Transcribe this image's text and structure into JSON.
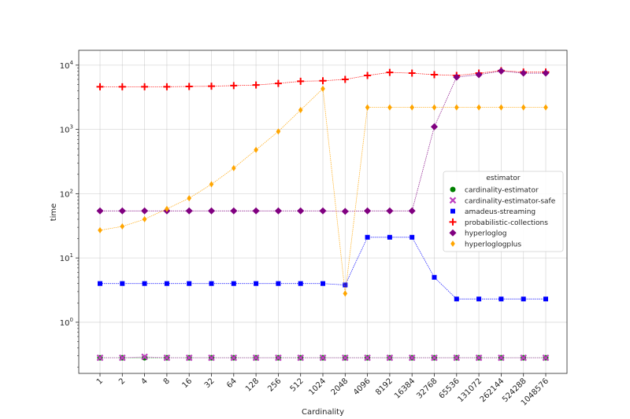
{
  "chart_data": {
    "type": "line",
    "title": "",
    "xlabel": "Cardinality",
    "ylabel": "time",
    "yscale": "log",
    "ylim": [
      0.16,
      17000
    ],
    "categories": [
      "1",
      "2",
      "4",
      "8",
      "16",
      "32",
      "64",
      "128",
      "256",
      "512",
      "1024",
      "2048",
      "4096",
      "8192",
      "16384",
      "32768",
      "65536",
      "131072",
      "262144",
      "524288",
      "1048576"
    ],
    "y_ticks": [
      {
        "value": 1,
        "base": "10",
        "exp": "0"
      },
      {
        "value": 10,
        "base": "10",
        "exp": "1"
      },
      {
        "value": 100,
        "base": "10",
        "exp": "2"
      },
      {
        "value": 1000,
        "base": "10",
        "exp": "3"
      },
      {
        "value": 10000,
        "base": "10",
        "exp": "4"
      }
    ],
    "grid": true,
    "legend": {
      "title": "estimator",
      "position": "right"
    },
    "series": [
      {
        "name": "cardinality-estimator",
        "color": "#008000",
        "marker": "circle",
        "values": [
          0.28,
          0.28,
          0.28,
          0.28,
          0.28,
          0.28,
          0.28,
          0.28,
          0.28,
          0.28,
          0.28,
          0.28,
          0.28,
          0.28,
          0.28,
          0.28,
          0.28,
          0.28,
          0.28,
          0.28,
          0.28
        ]
      },
      {
        "name": "cardinality-estimator-safe",
        "color": "#bf40bf",
        "marker": "x",
        "values": [
          0.28,
          0.28,
          0.29,
          0.28,
          0.28,
          0.28,
          0.28,
          0.28,
          0.28,
          0.28,
          0.28,
          0.28,
          0.28,
          0.28,
          0.28,
          0.28,
          0.28,
          0.28,
          0.28,
          0.28,
          0.28
        ]
      },
      {
        "name": "amadeus-streaming",
        "color": "#0000ff",
        "marker": "square",
        "values": [
          4.0,
          4.0,
          4.0,
          4.0,
          4.0,
          4.0,
          4.0,
          4.0,
          4.0,
          4.0,
          4.0,
          3.8,
          21,
          21,
          21,
          5.0,
          2.3,
          2.3,
          2.3,
          2.3,
          2.3
        ]
      },
      {
        "name": "probabilistic-collections",
        "color": "#ff0000",
        "marker": "plus",
        "values": [
          4600,
          4600,
          4600,
          4600,
          4650,
          4700,
          4800,
          4900,
          5200,
          5600,
          5700,
          6000,
          6900,
          7700,
          7500,
          7100,
          6900,
          7500,
          8200,
          7800,
          7800
        ]
      },
      {
        "name": "hyperloglog",
        "color": "#800080",
        "marker": "diamond",
        "values": [
          54,
          54,
          54,
          54,
          54,
          54,
          54,
          54,
          54,
          54,
          54,
          53,
          54,
          54,
          54,
          1100,
          6500,
          7100,
          8100,
          7500,
          7500
        ]
      },
      {
        "name": "hyperloglogplus",
        "color": "#ffa500",
        "marker": "thin_diamond",
        "values": [
          27,
          31,
          40,
          58,
          85,
          140,
          250,
          480,
          930,
          2000,
          4300,
          2.8,
          2200,
          2200,
          2200,
          2200,
          2200,
          2200,
          2200,
          2200,
          2200
        ]
      }
    ]
  }
}
